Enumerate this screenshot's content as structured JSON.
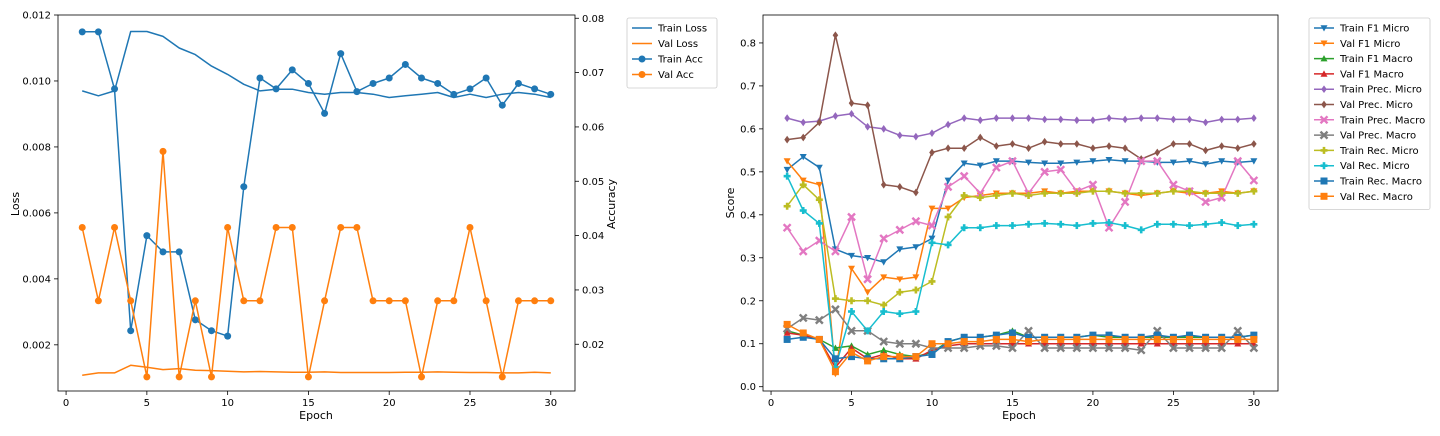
{
  "chart_data": [
    {
      "type": "line",
      "xlabel": "Epoch",
      "ylabel": "Loss",
      "y2label": "Accuracy",
      "x": [
        1,
        2,
        3,
        4,
        5,
        6,
        7,
        8,
        9,
        10,
        11,
        12,
        13,
        14,
        15,
        16,
        17,
        18,
        19,
        20,
        21,
        22,
        23,
        24,
        25,
        26,
        27,
        28,
        29,
        30
      ],
      "xlim": [
        -0.5,
        31.5
      ],
      "ylim": [
        0.0006,
        0.012
      ],
      "y2lim": [
        0.0114,
        0.0806
      ],
      "xticks": [
        0,
        5,
        10,
        15,
        20,
        25,
        30
      ],
      "yticks": [
        0.002,
        0.004,
        0.006,
        0.008,
        0.01,
        0.012
      ],
      "ytick_labels": [
        "0.002",
        "0.004",
        "0.006",
        "0.008",
        "0.010",
        "0.012"
      ],
      "y2ticks": [
        0.02,
        0.03,
        0.04,
        0.05,
        0.06,
        0.07,
        0.08
      ],
      "y2tick_labels": [
        "0.02",
        "0.03",
        "0.04",
        "0.05",
        "0.06",
        "0.07",
        "0.08"
      ],
      "legend_position": "outside-top-right",
      "series": [
        {
          "name": "Train Loss",
          "axis": "left",
          "color": "#1f77b4",
          "marker": "none",
          "values": [
            0.0097,
            0.00955,
            0.0097,
            0.0115,
            0.0115,
            0.01135,
            0.011,
            0.0108,
            0.01045,
            0.0102,
            0.0099,
            0.0097,
            0.00975,
            0.00975,
            0.00965,
            0.0096,
            0.00965,
            0.00965,
            0.0096,
            0.0095,
            0.00955,
            0.0096,
            0.00965,
            0.0095,
            0.0096,
            0.0095,
            0.0096,
            0.00965,
            0.0096,
            0.0095
          ]
        },
        {
          "name": "Val Loss",
          "axis": "left",
          "color": "#ff7f0e",
          "marker": "none",
          "values": [
            0.00108,
            0.00115,
            0.00115,
            0.00138,
            0.00132,
            0.00125,
            0.00128,
            0.00123,
            0.00122,
            0.0012,
            0.00118,
            0.00119,
            0.00118,
            0.00117,
            0.00117,
            0.00118,
            0.00116,
            0.00116,
            0.00116,
            0.00116,
            0.00117,
            0.00117,
            0.00118,
            0.00117,
            0.00116,
            0.00116,
            0.00115,
            0.00115,
            0.00117,
            0.00115
          ]
        },
        {
          "name": "Train Acc",
          "axis": "right",
          "color": "#1f77b4",
          "marker": "o",
          "values": [
            0.0775,
            0.0775,
            0.067,
            0.0225,
            0.04,
            0.037,
            0.037,
            0.0245,
            0.0225,
            0.0215,
            0.049,
            0.069,
            0.067,
            0.0705,
            0.068,
            0.0625,
            0.0735,
            0.0665,
            0.068,
            0.069,
            0.0715,
            0.069,
            0.068,
            0.066,
            0.067,
            0.069,
            0.064,
            0.068,
            0.067,
            0.066
          ]
        },
        {
          "name": "Val Acc",
          "axis": "right",
          "color": "#ff7f0e",
          "marker": "o",
          "values": [
            0.0415,
            0.028,
            0.0415,
            0.028,
            0.014,
            0.0555,
            0.014,
            0.028,
            0.014,
            0.0415,
            0.028,
            0.028,
            0.0415,
            0.0415,
            0.014,
            0.028,
            0.0415,
            0.0415,
            0.028,
            0.028,
            0.028,
            0.014,
            0.028,
            0.028,
            0.0415,
            0.028,
            0.014,
            0.028,
            0.028,
            0.028
          ]
        }
      ]
    },
    {
      "type": "line",
      "xlabel": "Epoch",
      "ylabel": "Score",
      "x": [
        1,
        2,
        3,
        4,
        5,
        6,
        7,
        8,
        9,
        10,
        11,
        12,
        13,
        14,
        15,
        16,
        17,
        18,
        19,
        20,
        21,
        22,
        23,
        24,
        25,
        26,
        27,
        28,
        29,
        30
      ],
      "xlim": [
        -0.5,
        31.5
      ],
      "ylim": [
        -0.01,
        0.865
      ],
      "xticks": [
        0,
        5,
        10,
        15,
        20,
        25,
        30
      ],
      "yticks": [
        0.0,
        0.1,
        0.2,
        0.3,
        0.4,
        0.5,
        0.6,
        0.7,
        0.8
      ],
      "ytick_labels": [
        "0.0",
        "0.1",
        "0.2",
        "0.3",
        "0.4",
        "0.5",
        "0.6",
        "0.7",
        "0.8"
      ],
      "legend_position": "outside-top-right",
      "series": [
        {
          "name": "Train F1 Micro",
          "color": "#1f77b4",
          "marker": "v",
          "values": [
            0.505,
            0.535,
            0.51,
            0.32,
            0.305,
            0.3,
            0.29,
            0.32,
            0.325,
            0.345,
            0.48,
            0.52,
            0.515,
            0.525,
            0.525,
            0.522,
            0.52,
            0.52,
            0.522,
            0.525,
            0.528,
            0.525,
            0.525,
            0.522,
            0.522,
            0.525,
            0.518,
            0.525,
            0.522,
            0.525
          ]
        },
        {
          "name": "Val F1 Micro",
          "color": "#ff7f0e",
          "marker": "v",
          "values": [
            0.525,
            0.48,
            0.47,
            0.03,
            0.275,
            0.22,
            0.255,
            0.25,
            0.255,
            0.415,
            0.415,
            0.44,
            0.445,
            0.45,
            0.45,
            0.45,
            0.455,
            0.45,
            0.455,
            0.455,
            0.455,
            0.45,
            0.445,
            0.45,
            0.455,
            0.45,
            0.45,
            0.455,
            0.45,
            0.455
          ]
        },
        {
          "name": "Train F1 Macro",
          "color": "#2ca02c",
          "marker": "^",
          "values": [
            0.13,
            0.12,
            0.11,
            0.09,
            0.095,
            0.075,
            0.085,
            0.075,
            0.07,
            0.08,
            0.105,
            0.115,
            0.115,
            0.12,
            0.13,
            0.115,
            0.115,
            0.115,
            0.115,
            0.12,
            0.115,
            0.115,
            0.115,
            0.115,
            0.115,
            0.115,
            0.115,
            0.115,
            0.115,
            0.12
          ]
        },
        {
          "name": "Val F1 Macro",
          "color": "#d62728",
          "marker": "^",
          "values": [
            0.125,
            0.12,
            0.11,
            0.045,
            0.09,
            0.065,
            0.075,
            0.065,
            0.065,
            0.085,
            0.095,
            0.1,
            0.1,
            0.1,
            0.1,
            0.1,
            0.1,
            0.1,
            0.1,
            0.1,
            0.1,
            0.1,
            0.1,
            0.1,
            0.1,
            0.1,
            0.1,
            0.1,
            0.1,
            0.1
          ]
        },
        {
          "name": "Train Prec. Micro",
          "color": "#9467bd",
          "marker": "D",
          "values": [
            0.625,
            0.615,
            0.618,
            0.63,
            0.635,
            0.605,
            0.6,
            0.585,
            0.582,
            0.59,
            0.61,
            0.625,
            0.62,
            0.625,
            0.625,
            0.625,
            0.622,
            0.622,
            0.62,
            0.62,
            0.625,
            0.622,
            0.625,
            0.625,
            0.622,
            0.622,
            0.615,
            0.622,
            0.622,
            0.625
          ]
        },
        {
          "name": "Val Prec. Micro",
          "color": "#8c564b",
          "marker": "D",
          "values": [
            0.575,
            0.58,
            0.615,
            0.818,
            0.66,
            0.655,
            0.47,
            0.465,
            0.452,
            0.545,
            0.555,
            0.555,
            0.58,
            0.56,
            0.565,
            0.555,
            0.57,
            0.565,
            0.565,
            0.555,
            0.56,
            0.555,
            0.53,
            0.545,
            0.565,
            0.565,
            0.55,
            0.56,
            0.555,
            0.565
          ]
        },
        {
          "name": "Train Prec. Macro",
          "color": "#e377c2",
          "marker": "X",
          "values": [
            0.37,
            0.315,
            0.34,
            0.315,
            0.395,
            0.25,
            0.345,
            0.365,
            0.385,
            0.375,
            0.465,
            0.49,
            0.45,
            0.51,
            0.525,
            0.45,
            0.5,
            0.505,
            0.455,
            0.47,
            0.37,
            0.43,
            0.525,
            0.525,
            0.47,
            0.455,
            0.43,
            0.44,
            0.525,
            0.48
          ]
        },
        {
          "name": "Val Prec. Macro",
          "color": "#7f7f7f",
          "marker": "X",
          "values": [
            0.135,
            0.16,
            0.155,
            0.18,
            0.13,
            0.13,
            0.105,
            0.1,
            0.1,
            0.09,
            0.09,
            0.09,
            0.095,
            0.095,
            0.09,
            0.13,
            0.09,
            0.09,
            0.09,
            0.09,
            0.09,
            0.09,
            0.085,
            0.13,
            0.09,
            0.09,
            0.09,
            0.09,
            0.13,
            0.09
          ]
        },
        {
          "name": "Train Rec. Micro",
          "color": "#bcbd22",
          "marker": "P",
          "values": [
            0.42,
            0.47,
            0.435,
            0.205,
            0.2,
            0.2,
            0.19,
            0.22,
            0.225,
            0.245,
            0.395,
            0.445,
            0.44,
            0.445,
            0.45,
            0.445,
            0.45,
            0.45,
            0.45,
            0.455,
            0.455,
            0.45,
            0.45,
            0.45,
            0.455,
            0.455,
            0.45,
            0.45,
            0.45,
            0.455
          ]
        },
        {
          "name": "Val Rec. Micro",
          "color": "#17becf",
          "marker": "P",
          "values": [
            0.49,
            0.41,
            0.38,
            0.045,
            0.175,
            0.13,
            0.175,
            0.17,
            0.175,
            0.335,
            0.33,
            0.37,
            0.37,
            0.375,
            0.375,
            0.378,
            0.38,
            0.378,
            0.375,
            0.38,
            0.382,
            0.375,
            0.365,
            0.378,
            0.378,
            0.375,
            0.378,
            0.382,
            0.375,
            0.378
          ]
        },
        {
          "name": "Train Rec. Macro",
          "color": "#1f77b4",
          "marker": "s",
          "values": [
            0.11,
            0.115,
            0.11,
            0.065,
            0.07,
            0.065,
            0.065,
            0.065,
            0.07,
            0.075,
            0.105,
            0.115,
            0.115,
            0.12,
            0.125,
            0.115,
            0.115,
            0.115,
            0.115,
            0.12,
            0.12,
            0.115,
            0.115,
            0.12,
            0.115,
            0.12,
            0.115,
            0.115,
            0.115,
            0.12
          ]
        },
        {
          "name": "Val Rec. Macro",
          "color": "#ff7f0e",
          "marker": "s",
          "values": [
            0.145,
            0.125,
            0.11,
            0.035,
            0.08,
            0.06,
            0.07,
            0.07,
            0.07,
            0.1,
            0.1,
            0.105,
            0.105,
            0.11,
            0.11,
            0.105,
            0.11,
            0.11,
            0.11,
            0.11,
            0.11,
            0.11,
            0.11,
            0.11,
            0.11,
            0.11,
            0.11,
            0.11,
            0.11,
            0.11
          ]
        }
      ]
    }
  ]
}
